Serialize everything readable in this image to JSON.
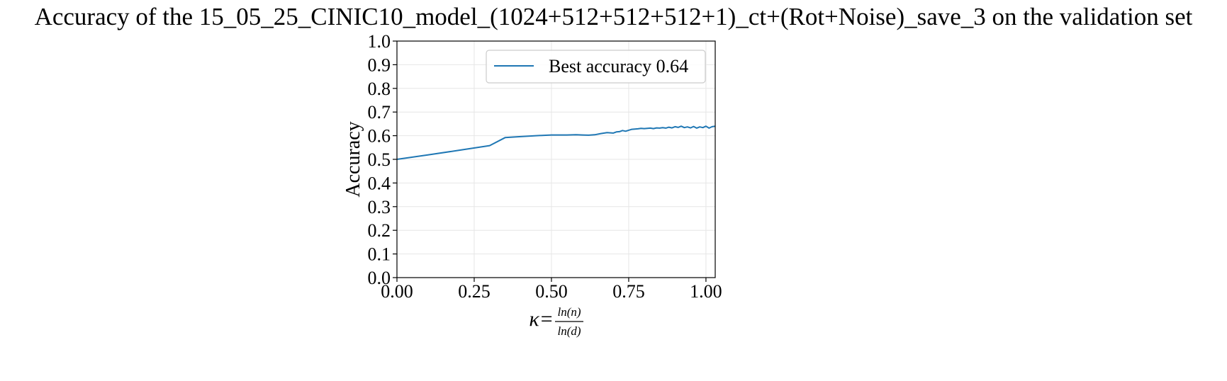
{
  "chart_data": {
    "type": "line",
    "title": "Accuracy of the 15_05_25_CINIC10_model_(1024+512+512+512+1)_ct+(Rot+Noise)_save_3 on the validation set",
    "ylabel": "Accuracy",
    "xlabel": {
      "lhs": "κ=",
      "numerator": "ln(n)",
      "denominator": "ln(d)"
    },
    "xlim": [
      0.0,
      1.03
    ],
    "ylim": [
      0.0,
      1.0
    ],
    "xticks": [
      0.0,
      0.25,
      0.5,
      0.75,
      1.0
    ],
    "xtick_labels": [
      "0.00",
      "0.25",
      "0.50",
      "0.75",
      "1.00"
    ],
    "yticks": [
      0.0,
      0.1,
      0.2,
      0.3,
      0.4,
      0.5,
      0.6,
      0.7,
      0.8,
      0.9,
      1.0
    ],
    "ytick_labels": [
      "0.0",
      "0.1",
      "0.2",
      "0.3",
      "0.4",
      "0.5",
      "0.6",
      "0.7",
      "0.8",
      "0.9",
      "1.0"
    ],
    "grid": true,
    "legend_position": "upper-right",
    "colors": {
      "series": "#1f77b4",
      "grid": "#e6e6e6",
      "legend_border": "#cccccc"
    },
    "series": [
      {
        "name": "Best accuracy 0.64",
        "x": [
          0.0,
          0.1,
          0.2,
          0.3,
          0.35,
          0.4,
          0.45,
          0.5,
          0.55,
          0.58,
          0.6,
          0.62,
          0.64,
          0.66,
          0.68,
          0.7,
          0.71,
          0.72,
          0.73,
          0.74,
          0.75,
          0.76,
          0.77,
          0.78,
          0.79,
          0.8,
          0.81,
          0.82,
          0.83,
          0.84,
          0.85,
          0.86,
          0.87,
          0.88,
          0.89,
          0.9,
          0.91,
          0.92,
          0.93,
          0.94,
          0.95,
          0.96,
          0.97,
          0.98,
          0.99,
          1.0,
          1.01,
          1.02,
          1.03
        ],
        "y": [
          0.5,
          0.519,
          0.538,
          0.558,
          0.592,
          0.596,
          0.6,
          0.603,
          0.603,
          0.604,
          0.603,
          0.602,
          0.604,
          0.609,
          0.613,
          0.611,
          0.616,
          0.617,
          0.622,
          0.619,
          0.623,
          0.627,
          0.628,
          0.629,
          0.631,
          0.63,
          0.631,
          0.632,
          0.63,
          0.633,
          0.632,
          0.634,
          0.632,
          0.636,
          0.633,
          0.638,
          0.635,
          0.64,
          0.634,
          0.637,
          0.633,
          0.639,
          0.632,
          0.637,
          0.634,
          0.64,
          0.632,
          0.638,
          0.64
        ]
      }
    ]
  }
}
